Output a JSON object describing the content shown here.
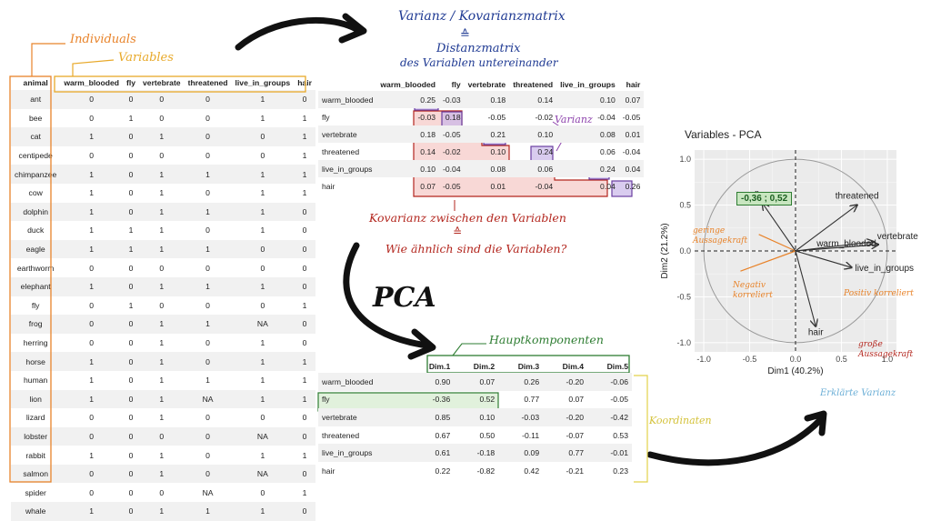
{
  "annotations": {
    "individuals": "Individuals",
    "variables": "Variables",
    "cov_title": "Varianz / Kovarianzmatrix",
    "equiv1": "≙",
    "dist1": "Distanzmatrix",
    "dist2": "des Variablen untereinander",
    "kov_between": "Kovarianz zwischen den Variablen",
    "equiv2": "≙",
    "how_similar": "Wie ähnlich sind die Variablen?",
    "varianz": "Varianz",
    "pca": "PCA",
    "hauptkomponenten": "Hauptkomponenten",
    "koordinaten": "Koordinaten",
    "fly_coord": "-0,36 ; 0,52",
    "geringe1": "geringe",
    "geringe2": "Aussagekraft",
    "negativ1": "Negativ",
    "negativ2": "korreliert",
    "positiv": "Positiv korreliert",
    "grosse1": "große",
    "grosse2": "Aussagekraft",
    "erklaerte": "Erklärte Varianz"
  },
  "animals": {
    "columns": [
      "animal",
      "warm_blooded",
      "fly",
      "vertebrate",
      "threatened",
      "live_in_groups",
      "hair"
    ],
    "rows": [
      [
        "ant",
        "0",
        "0",
        "0",
        "0",
        "1",
        "0"
      ],
      [
        "bee",
        "0",
        "1",
        "0",
        "0",
        "1",
        "1"
      ],
      [
        "cat",
        "1",
        "0",
        "1",
        "0",
        "0",
        "1"
      ],
      [
        "centipede",
        "0",
        "0",
        "0",
        "0",
        "0",
        "1"
      ],
      [
        "chimpanzee",
        "1",
        "0",
        "1",
        "1",
        "1",
        "1"
      ],
      [
        "cow",
        "1",
        "0",
        "1",
        "0",
        "1",
        "1"
      ],
      [
        "dolphin",
        "1",
        "0",
        "1",
        "1",
        "1",
        "0"
      ],
      [
        "duck",
        "1",
        "1",
        "1",
        "0",
        "1",
        "0"
      ],
      [
        "eagle",
        "1",
        "1",
        "1",
        "1",
        "0",
        "0"
      ],
      [
        "earthworm",
        "0",
        "0",
        "0",
        "0",
        "0",
        "0"
      ],
      [
        "elephant",
        "1",
        "0",
        "1",
        "1",
        "1",
        "0"
      ],
      [
        "fly",
        "0",
        "1",
        "0",
        "0",
        "0",
        "1"
      ],
      [
        "frog",
        "0",
        "0",
        "1",
        "1",
        "NA",
        "0"
      ],
      [
        "herring",
        "0",
        "0",
        "1",
        "0",
        "1",
        "0"
      ],
      [
        "horse",
        "1",
        "0",
        "1",
        "0",
        "1",
        "1"
      ],
      [
        "human",
        "1",
        "0",
        "1",
        "1",
        "1",
        "1"
      ],
      [
        "lion",
        "1",
        "0",
        "1",
        "NA",
        "1",
        "1"
      ],
      [
        "lizard",
        "0",
        "0",
        "1",
        "0",
        "0",
        "0"
      ],
      [
        "lobster",
        "0",
        "0",
        "0",
        "0",
        "NA",
        "0"
      ],
      [
        "rabbit",
        "1",
        "0",
        "1",
        "0",
        "1",
        "1"
      ],
      [
        "salmon",
        "0",
        "0",
        "1",
        "0",
        "NA",
        "0"
      ],
      [
        "spider",
        "0",
        "0",
        "0",
        "NA",
        "0",
        "1"
      ],
      [
        "whale",
        "1",
        "0",
        "1",
        "1",
        "1",
        "0"
      ]
    ]
  },
  "cov": {
    "columns": [
      "",
      "warm_blooded",
      "fly",
      "vertebrate",
      "threatened",
      "live_in_groups",
      "hair"
    ],
    "rows": [
      [
        "warm_blooded",
        "0.25",
        "-0.03",
        "0.18",
        "0.14",
        "0.10",
        "0.07"
      ],
      [
        "fly",
        "-0.03",
        "0.18",
        "-0.05",
        "-0.02",
        "-0.04",
        "-0.05"
      ],
      [
        "vertebrate",
        "0.18",
        "-0.05",
        "0.21",
        "0.10",
        "0.08",
        "0.01"
      ],
      [
        "threatened",
        "0.14",
        "-0.02",
        "0.10",
        "0.24",
        "0.06",
        "-0.04"
      ],
      [
        "live_in_groups",
        "0.10",
        "-0.04",
        "0.08",
        "0.06",
        "0.24",
        "0.04"
      ],
      [
        "hair",
        "0.07",
        "-0.05",
        "0.01",
        "-0.04",
        "0.04",
        "0.26"
      ]
    ]
  },
  "coords": {
    "columns": [
      "",
      "Dim.1",
      "Dim.2",
      "Dim.3",
      "Dim.4",
      "Dim.5"
    ],
    "rows": [
      [
        "warm_blooded",
        "0.90",
        "0.07",
        "0.26",
        "-0.20",
        "-0.06"
      ],
      [
        "fly",
        "-0.36",
        "0.52",
        "0.77",
        "0.07",
        "-0.05"
      ],
      [
        "vertebrate",
        "0.85",
        "0.10",
        "-0.03",
        "-0.20",
        "-0.42"
      ],
      [
        "threatened",
        "0.67",
        "0.50",
        "-0.11",
        "-0.07",
        "0.53"
      ],
      [
        "live_in_groups",
        "0.61",
        "-0.18",
        "0.09",
        "0.77",
        "-0.01"
      ],
      [
        "hair",
        "0.22",
        "-0.82",
        "0.42",
        "-0.21",
        "0.23"
      ]
    ]
  },
  "chart_data": {
    "type": "scatter",
    "title": "Variables - PCA",
    "xlabel": "Dim1 (40.2%)",
    "ylabel": "Dim2 (21.2%)",
    "xlim": [
      -1.1,
      1.1
    ],
    "ylim": [
      -1.1,
      1.1
    ],
    "xticks": [
      "-1.0",
      "-0.5",
      "0.0",
      "0.5",
      "1.0"
    ],
    "yticks": [
      "-1.0",
      "-0.5",
      "0.0",
      "0.5",
      "1.0"
    ],
    "vectors": [
      {
        "name": "warm_blooded",
        "x": 0.9,
        "y": 0.07
      },
      {
        "name": "fly",
        "x": -0.36,
        "y": 0.52
      },
      {
        "name": "vertebrate",
        "x": 0.85,
        "y": 0.1
      },
      {
        "name": "threatened",
        "x": 0.67,
        "y": 0.5
      },
      {
        "name": "live_in_groups",
        "x": 0.61,
        "y": -0.18
      },
      {
        "name": "hair",
        "x": 0.22,
        "y": -0.82
      }
    ],
    "grid": true
  }
}
